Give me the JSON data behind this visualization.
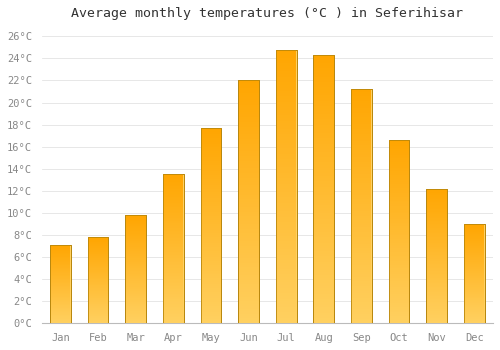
{
  "title": "Average monthly temperatures (°C ) in Seferihisar",
  "months": [
    "Jan",
    "Feb",
    "Mar",
    "Apr",
    "May",
    "Jun",
    "Jul",
    "Aug",
    "Sep",
    "Oct",
    "Nov",
    "Dec"
  ],
  "values": [
    7.1,
    7.8,
    9.8,
    13.5,
    17.7,
    22.0,
    24.8,
    24.3,
    21.2,
    16.6,
    12.2,
    9.0
  ],
  "bar_color_top": "#FFA500",
  "bar_color_bottom": "#FFD060",
  "bar_edge_color": "#B8860B",
  "background_color": "#FFFFFF",
  "grid_color": "#DDDDDD",
  "ylim": [
    0,
    27
  ],
  "yticks": [
    0,
    2,
    4,
    6,
    8,
    10,
    12,
    14,
    16,
    18,
    20,
    22,
    24,
    26
  ],
  "ytick_labels": [
    "0°C",
    "2°C",
    "4°C",
    "6°C",
    "8°C",
    "10°C",
    "12°C",
    "14°C",
    "16°C",
    "18°C",
    "20°C",
    "22°C",
    "24°C",
    "26°C"
  ],
  "title_fontsize": 9.5,
  "tick_fontsize": 7.5,
  "tick_color": "#888888",
  "spine_color": "#BBBBBB",
  "bar_width": 0.55
}
